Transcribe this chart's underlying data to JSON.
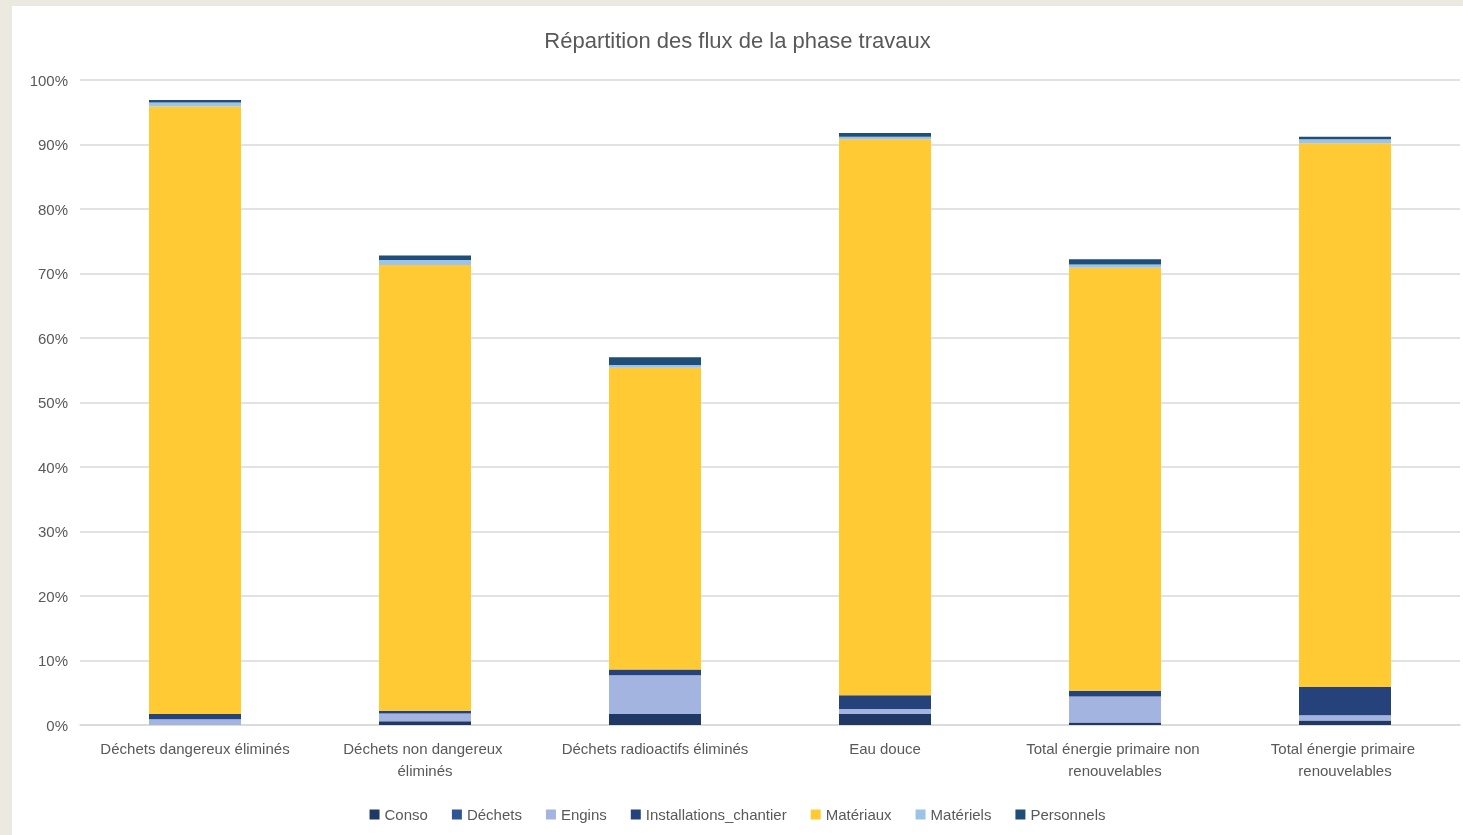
{
  "chart_data": {
    "type": "bar",
    "stacked": true,
    "title": "Répartition des flux de la phase travaux",
    "categories": [
      "Déchets dangereux éliminés",
      "Déchets non dangereux éliminés",
      "Déchets radioactifs éliminés",
      "Eau douce",
      "Total énergie primaire non renouvelables",
      "Total énergie primaire renouvelables"
    ],
    "series": [
      {
        "name": "Conso",
        "color": "#203864",
        "values": [
          0,
          0.6,
          1.7,
          1.7,
          0.4,
          0.7
        ]
      },
      {
        "name": "Déchets",
        "color": "#2f5597",
        "values": [
          0,
          0,
          0,
          0,
          0,
          0
        ]
      },
      {
        "name": "Engins",
        "color": "#a2b4df",
        "values": [
          0.9,
          1.2,
          6.0,
          0.8,
          4.0,
          0.8
        ]
      },
      {
        "name": "Installations_chantier",
        "color": "#25437a",
        "values": [
          0.8,
          0.4,
          0.9,
          2.1,
          0.9,
          4.4
        ]
      },
      {
        "name": "Matériaux",
        "color": "#ffca34",
        "values": [
          94.2,
          69.1,
          46.8,
          86.2,
          65.6,
          84.3
        ]
      },
      {
        "name": "Matériels",
        "color": "#9dc3e6",
        "values": [
          0.6,
          0.8,
          0.4,
          0.4,
          0.5,
          0.6
        ]
      },
      {
        "name": "Personnels",
        "color": "#1f4e79",
        "values": [
          0.4,
          0.7,
          1.2,
          0.6,
          0.8,
          0.4
        ]
      }
    ],
    "ylim": [
      0,
      100
    ],
    "yticks": [
      {
        "value": 0,
        "label": "0%"
      },
      {
        "value": 10,
        "label": "10%"
      },
      {
        "value": 20,
        "label": "20%"
      },
      {
        "value": 30,
        "label": "30%"
      },
      {
        "value": 40,
        "label": "40%"
      },
      {
        "value": 50,
        "label": "50%"
      },
      {
        "value": 60,
        "label": "60%"
      },
      {
        "value": 70,
        "label": "70%"
      },
      {
        "value": 80,
        "label": "80%"
      },
      {
        "value": 90,
        "label": "90%"
      },
      {
        "value": 100,
        "label": "100%"
      }
    ],
    "grid": "y",
    "legend": "bottom"
  }
}
